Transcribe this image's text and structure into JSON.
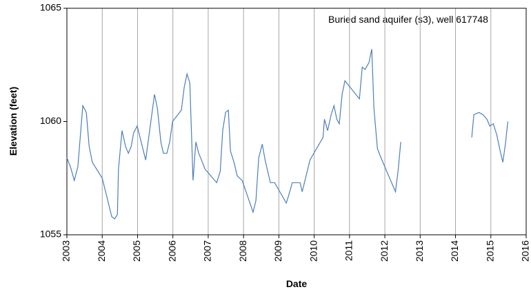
{
  "chart_data": {
    "type": "line",
    "annotation": "Buried sand aquifer (s3), well 617748",
    "x_label": "Date",
    "y_label": "Elevation (feet)",
    "xlim": [
      2003,
      2016
    ],
    "xticks": [
      2003,
      2004,
      2005,
      2006,
      2007,
      2008,
      2009,
      2010,
      2011,
      2012,
      2013,
      2014,
      2015,
      2016
    ],
    "ylim": [
      1055,
      1065
    ],
    "yticks": [
      1055,
      1060,
      1065
    ],
    "grid": "x",
    "x": [
      2003.0,
      2003.1,
      2003.21,
      2003.31,
      2003.45,
      2003.55,
      2003.63,
      2003.72,
      2004.0,
      2004.27,
      2004.35,
      2004.43,
      2004.46,
      2004.56,
      2004.66,
      2004.74,
      2004.82,
      2004.89,
      2004.99,
      2005.23,
      2005.48,
      2005.56,
      2005.66,
      2005.73,
      2005.83,
      2005.91,
      2005.99,
      2006.24,
      2006.32,
      2006.4,
      2006.48,
      2006.57,
      2006.65,
      2006.73,
      2006.81,
      2006.91,
      2007.24,
      2007.34,
      2007.41,
      2007.49,
      2007.57,
      2007.63,
      2007.73,
      2007.82,
      2007.96,
      2008.27,
      2008.35,
      2008.43,
      2008.53,
      2008.61,
      2008.7,
      2008.76,
      2008.88,
      2009.21,
      2009.27,
      2009.38,
      2009.46,
      2009.52,
      2009.6,
      2009.66,
      2009.74,
      2009.88,
      2010.25,
      2010.29,
      2010.38,
      2010.48,
      2010.56,
      2010.64,
      2010.71,
      2010.79,
      2010.87,
      2011.28,
      2011.36,
      2011.44,
      2011.55,
      2011.63,
      2011.69,
      2011.79,
      2011.89,
      2012.3,
      2012.38,
      2012.45,
      2013.5,
      2014.46,
      2014.52,
      2014.66,
      2014.78,
      2014.89,
      2014.97,
      2015.07,
      2015.17,
      2015.25,
      2015.34,
      2015.42,
      2015.48
    ],
    "series": [
      {
        "name": "well 617748",
        "color": "#4a7ebb",
        "values": [
          1058.4,
          1058.0,
          1057.4,
          1058.0,
          1060.7,
          1060.4,
          1058.9,
          1058.2,
          1057.5,
          1055.8,
          1055.7,
          1055.9,
          1057.9,
          1059.6,
          1058.9,
          1058.6,
          1058.9,
          1059.5,
          1059.8,
          1058.3,
          1061.2,
          1060.6,
          1059.1,
          1058.6,
          1058.6,
          1059.1,
          1060.0,
          1060.5,
          1061.5,
          1062.1,
          1061.7,
          1057.4,
          1059.1,
          1058.6,
          1058.3,
          1057.9,
          1057.3,
          1057.8,
          1059.6,
          1060.4,
          1060.5,
          1058.7,
          1058.2,
          1057.6,
          1057.4,
          1056.0,
          1056.5,
          1058.4,
          1059.0,
          1058.3,
          1057.7,
          1057.3,
          1057.3,
          1056.4,
          1056.7,
          1057.3,
          1057.3,
          1057.3,
          1057.3,
          1056.9,
          1057.4,
          1058.3,
          1059.3,
          1060.1,
          1059.6,
          1060.3,
          1060.7,
          1060.1,
          1059.9,
          1061.2,
          1061.8,
          1061.0,
          1062.4,
          1062.3,
          1062.6,
          1063.2,
          1060.6,
          1058.8,
          1058.4,
          1056.9,
          1057.9,
          1059.1,
          null,
          1059.3,
          1060.3,
          1060.4,
          1060.3,
          1060.1,
          1059.8,
          1059.9,
          1059.4,
          1058.8,
          1058.2,
          1059.1,
          1060.0
        ]
      }
    ]
  }
}
